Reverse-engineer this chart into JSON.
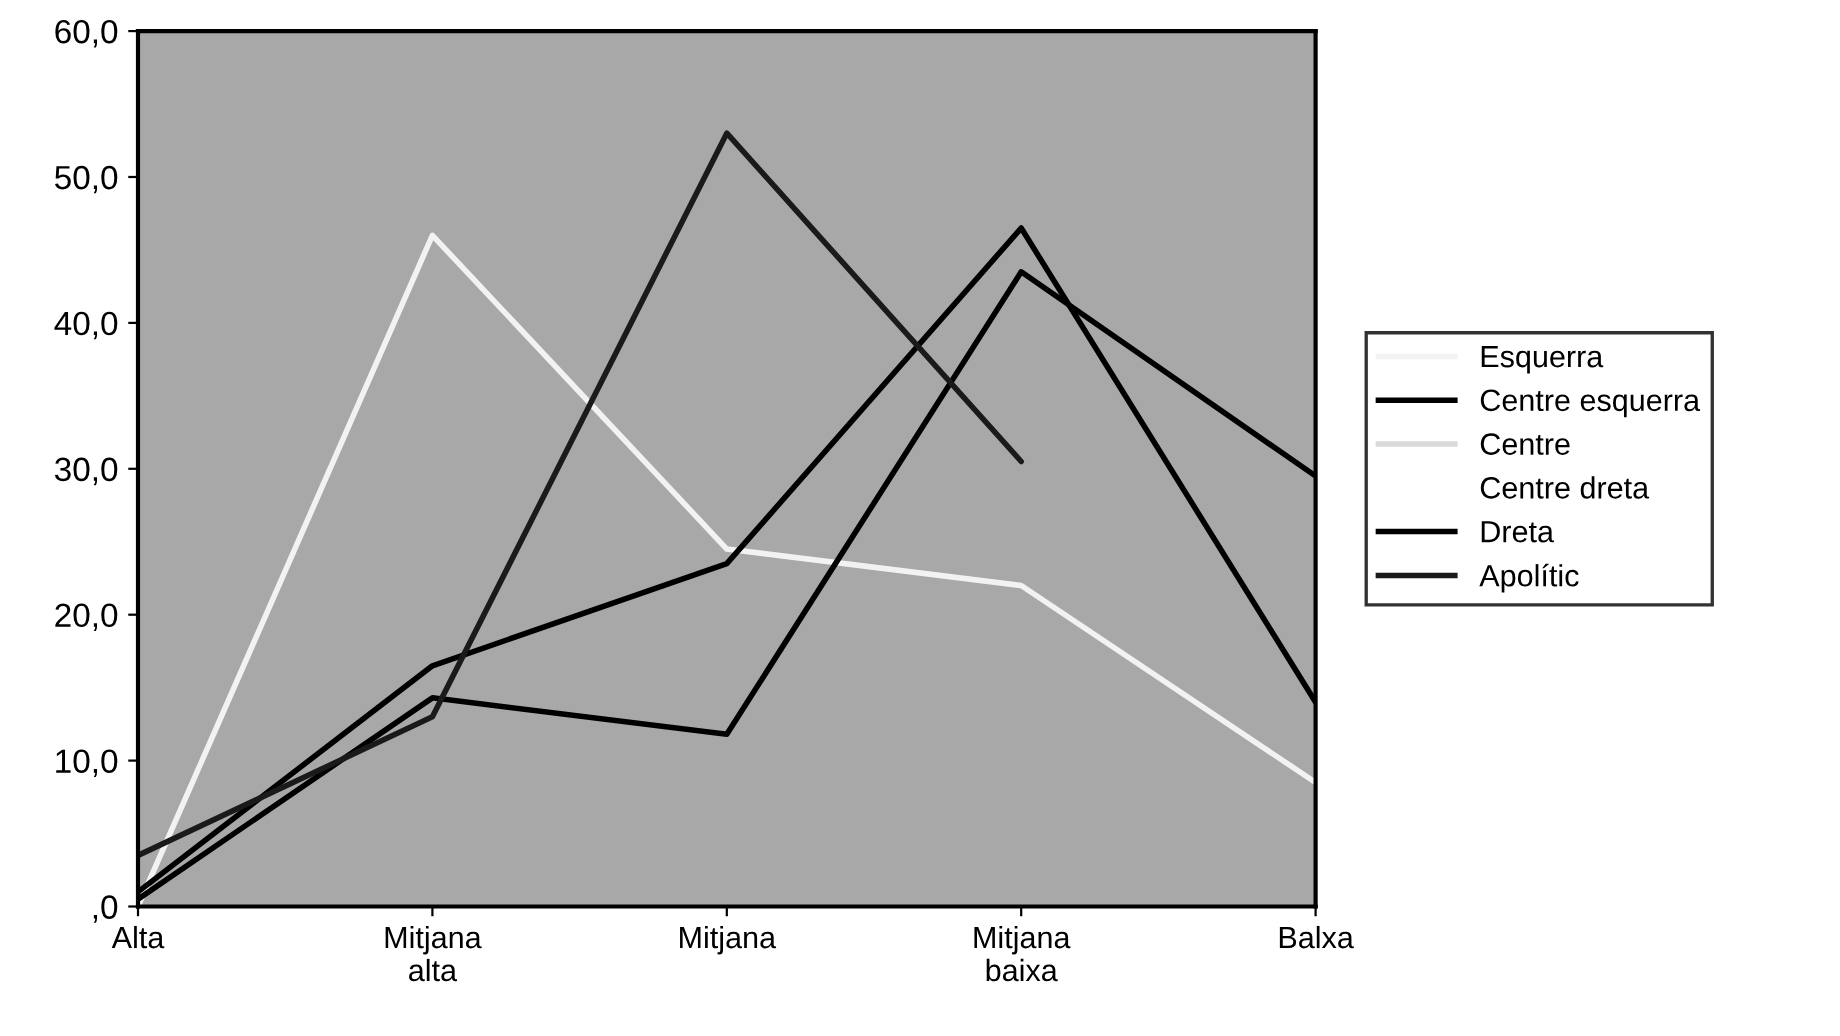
{
  "chart_data": {
    "type": "line",
    "categories": [
      "Alta",
      "Mitjana\nalta",
      "Mitjana",
      "Mitjana\nbaixa",
      "Balxa"
    ],
    "series": [
      {
        "name": "Esquerra",
        "color": "#f2f2f2",
        "values": [
          0,
          46,
          24.5,
          22,
          8.5
        ]
      },
      {
        "name": "Centre esquerra",
        "color": "#000000",
        "values": [
          1,
          16.5,
          23.5,
          46.5,
          14
        ]
      },
      {
        "name": "Centre",
        "color": "#d9d9d9",
        "values": [
          null,
          null,
          null,
          null,
          null
        ]
      },
      {
        "name": "Centre dreta",
        "values": [
          null,
          null,
          null,
          null,
          null
        ]
      },
      {
        "name": "Dreta",
        "color": "#000000",
        "values": [
          0.5,
          14.3,
          11.8,
          43.5,
          29.5
        ]
      },
      {
        "name": "Apolític",
        "color": "#1a1a1a",
        "values": [
          3.5,
          13,
          53,
          30.5,
          null
        ]
      }
    ],
    "ylim": [
      0,
      60
    ],
    "yticks": [
      {
        "value": 0,
        "label": ",0"
      },
      {
        "value": 10,
        "label": "10,0"
      },
      {
        "value": 20,
        "label": "20,0"
      },
      {
        "value": 30,
        "label": "30,0"
      },
      {
        "value": 40,
        "label": "40,0"
      },
      {
        "value": 50,
        "label": "50,0"
      },
      {
        "value": 60,
        "label": "60,0"
      }
    ],
    "grid": false,
    "legend": "right",
    "marker": "none",
    "line_style": "solid"
  }
}
